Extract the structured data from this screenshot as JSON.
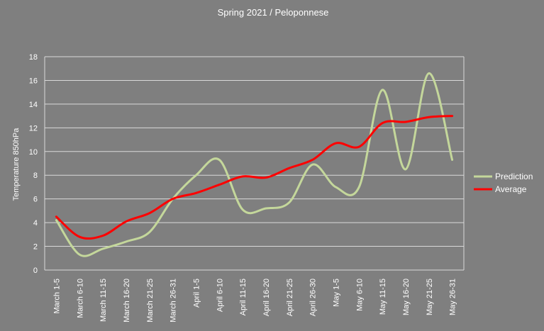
{
  "chart_data": {
    "type": "line",
    "title": "Spring 2021 / Peloponnese",
    "ylabel": "Temperature 850hPa",
    "xlabel": "",
    "ylim": [
      0,
      18
    ],
    "yticks": [
      0,
      2,
      4,
      6,
      8,
      10,
      12,
      14,
      16,
      18
    ],
    "categories": [
      "March 1-5",
      "March 6-10",
      "March 11-15",
      "March 16-20",
      "March 21-25",
      "March 26-31",
      "April 1-5",
      "April 6-10",
      "April 11-15",
      "April 16-20",
      "April 21-25",
      "April 26-30",
      "May 1-5",
      "May 6-10",
      "May 11-15",
      "May 16-20",
      "May 21-25",
      "May 26-31"
    ],
    "series": [
      {
        "name": "Prediction",
        "color": "#c4d79b",
        "values": [
          4.2,
          1.3,
          1.8,
          2.4,
          3.2,
          6.0,
          8.0,
          9.3,
          5.1,
          5.2,
          5.7,
          8.9,
          7.0,
          7.0,
          15.2,
          8.5,
          16.6,
          9.3
        ]
      },
      {
        "name": "Average",
        "color": "#ff0000",
        "values": [
          4.5,
          2.8,
          2.9,
          4.1,
          4.8,
          6.0,
          6.5,
          7.2,
          7.9,
          7.8,
          8.6,
          9.3,
          10.7,
          10.4,
          12.4,
          12.5,
          12.9,
          13.0
        ]
      }
    ],
    "grid": true,
    "legend_position": "right"
  }
}
